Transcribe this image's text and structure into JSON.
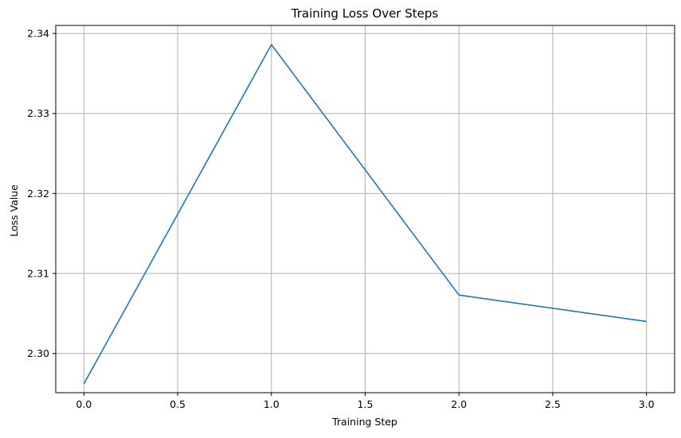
{
  "chart_data": {
    "type": "line",
    "title": "Training Loss Over Steps",
    "xlabel": "Training Step",
    "ylabel": "Loss Value",
    "x": [
      0,
      1,
      2,
      3
    ],
    "series": [
      {
        "values": [
          2.2962,
          2.3386,
          2.3073,
          2.304
        ],
        "color": "#1f77b4"
      }
    ],
    "xlim": [
      -0.15,
      3.15
    ],
    "ylim": [
      2.2951,
      2.341
    ],
    "xticks": [
      0.0,
      0.5,
      1.0,
      1.5,
      2.0,
      2.5,
      3.0
    ],
    "xtick_labels": [
      "0.0",
      "0.5",
      "1.0",
      "1.5",
      "2.0",
      "2.5",
      "3.0"
    ],
    "yticks": [
      2.3,
      2.31,
      2.32,
      2.33,
      2.34
    ],
    "ytick_labels": [
      "2.30",
      "2.31",
      "2.32",
      "2.33",
      "2.34"
    ],
    "grid": true,
    "grid_color": "#b0b0b0",
    "axis_color": "#000000"
  }
}
